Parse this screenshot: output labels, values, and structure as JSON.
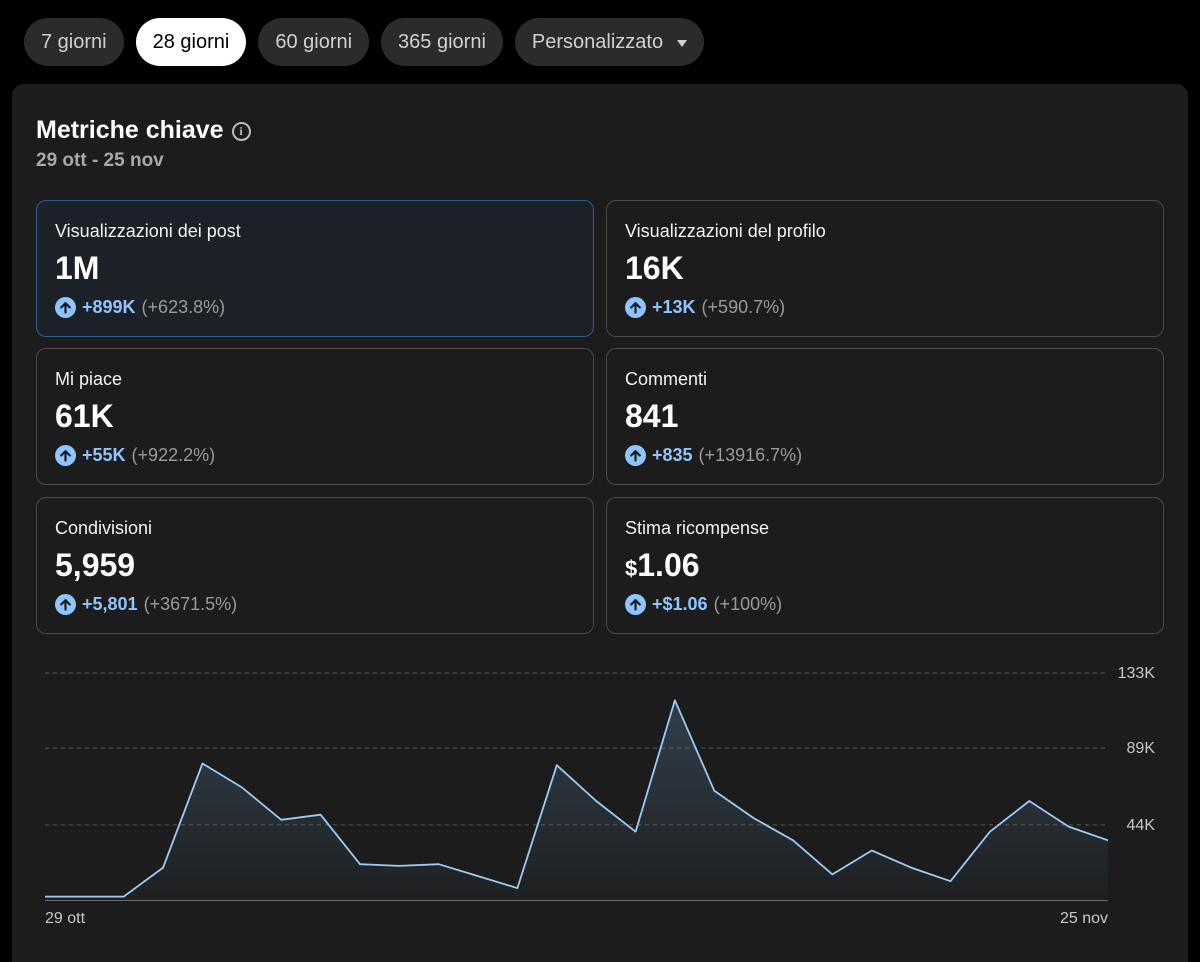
{
  "tabs": [
    {
      "label": "7 giorni",
      "active": false
    },
    {
      "label": "28 giorni",
      "active": true
    },
    {
      "label": "60 giorni",
      "active": false
    },
    {
      "label": "365 giorni",
      "active": false
    },
    {
      "label": "Personalizzato",
      "active": false,
      "dropdown": true
    }
  ],
  "panel": {
    "title": "Metriche chiave",
    "date_range": "29 ott - 25 nov"
  },
  "metrics": [
    {
      "label": "Visualizzazioni dei post",
      "value": "1M",
      "delta": "+899K",
      "pct": "(+623.8%)",
      "selected": true
    },
    {
      "label": "Visualizzazioni del profilo",
      "value": "16K",
      "delta": "+13K",
      "pct": "(+590.7%)"
    },
    {
      "label": "Mi piace",
      "value": "61K",
      "delta": "+55K",
      "pct": "(+922.2%)"
    },
    {
      "label": "Commenti",
      "value": "841",
      "delta": "+835",
      "pct": "(+13916.7%)"
    },
    {
      "label": "Condivisioni",
      "value": "5,959",
      "delta": "+5,801",
      "pct": "(+3671.5%)"
    },
    {
      "label": "Stima ricompense",
      "currency": "$",
      "value": "1.06",
      "delta": "+$1.06",
      "pct": "(+100%)"
    }
  ],
  "colors": {
    "accent": "#8ec5ff",
    "line": "#9ccbf7",
    "panel_bg": "#1c1c1c"
  },
  "chart_data": {
    "type": "area",
    "x_labels": [
      "29 ott",
      "25 nov"
    ],
    "y_ticks": [
      {
        "value": 44,
        "label": "44K"
      },
      {
        "value": 89,
        "label": "89K"
      },
      {
        "value": 133,
        "label": "133K"
      }
    ],
    "ylim": [
      0,
      133
    ],
    "values": [
      2,
      2,
      2,
      19,
      80,
      66,
      47,
      50,
      21,
      20,
      21,
      14,
      7,
      79,
      58,
      40,
      117,
      64,
      48,
      35,
      15,
      29,
      19,
      11,
      40,
      58,
      43,
      35
    ],
    "grid": true
  }
}
